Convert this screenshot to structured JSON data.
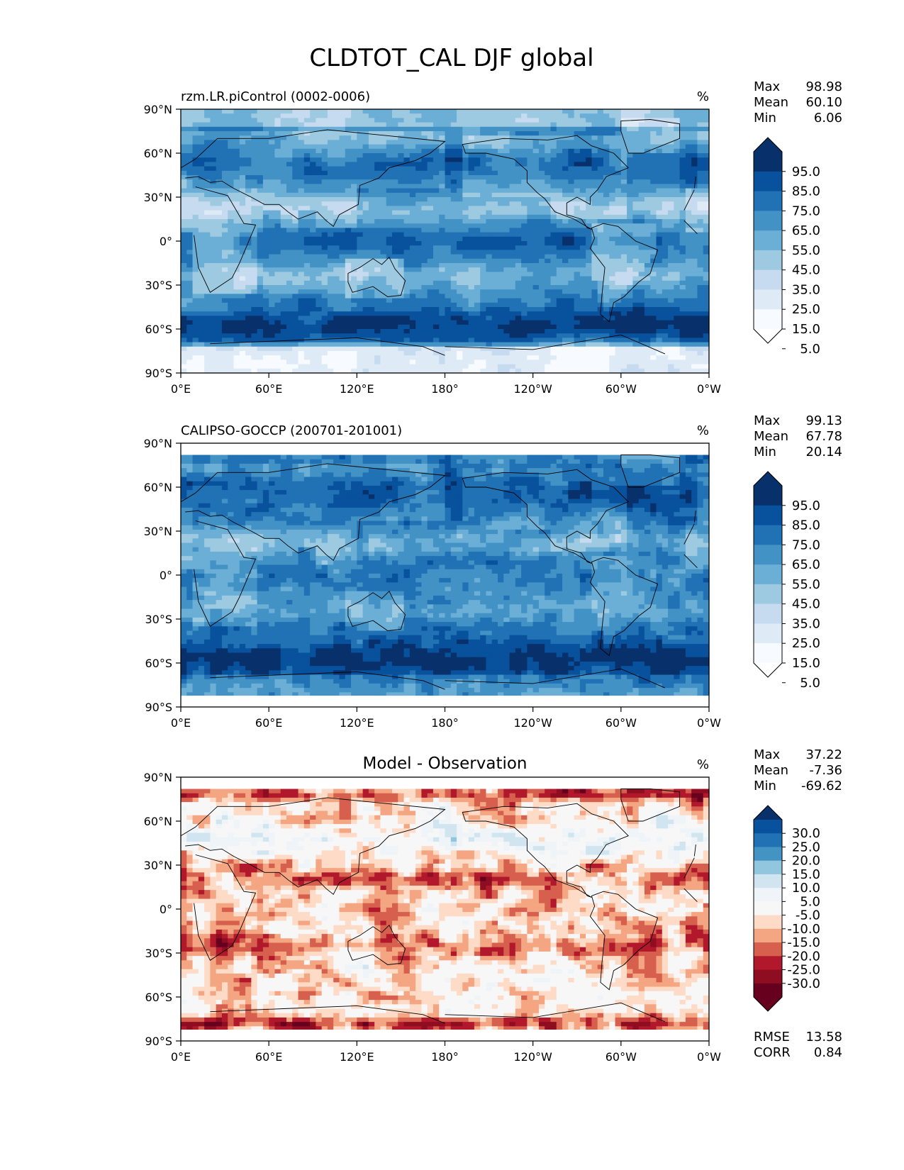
{
  "figure": {
    "title": "CLDTOT_CAL DJF global",
    "lat_ticks": [
      "90°N",
      "60°N",
      "30°N",
      "0°",
      "30°S",
      "60°S",
      "90°S"
    ],
    "lon_ticks": [
      "0°E",
      "60°E",
      "120°E",
      "180°",
      "120°W",
      "60°W",
      "0°W"
    ]
  },
  "chart_data": [
    {
      "type": "heatmap",
      "title": "",
      "left_title": "rzm.LR.piControl (0002-0006)",
      "units": "%",
      "stats": [
        {
          "label": "Max",
          "value": "98.98"
        },
        {
          "label": "Mean",
          "value": "60.10"
        },
        {
          "label": "Min",
          "value": "6.06"
        }
      ],
      "colorbar": {
        "extend": "both",
        "tick_labels": [
          "95.0",
          "85.0",
          "75.0",
          "65.0",
          "55.0",
          "45.0",
          "35.0",
          "25.0",
          "15.0",
          "5.0"
        ],
        "colors": [
          "#08306b",
          "#08519c",
          "#2171b5",
          "#4292c6",
          "#6baed6",
          "#9ecae1",
          "#c6dbef",
          "#deebf7",
          "#f7fbff"
        ]
      },
      "xlim": [
        0,
        360
      ],
      "ylim": [
        -90,
        90
      ],
      "cloud_fraction_range": [
        6.06,
        98.98
      ]
    },
    {
      "type": "heatmap",
      "title": "",
      "left_title": "CALIPSO-GOCCP (200701-201001)",
      "units": "%",
      "stats": [
        {
          "label": "Max",
          "value": "99.13"
        },
        {
          "label": "Mean",
          "value": "67.78"
        },
        {
          "label": "Min",
          "value": "20.14"
        }
      ],
      "colorbar": {
        "extend": "both",
        "tick_labels": [
          "95.0",
          "85.0",
          "75.0",
          "65.0",
          "55.0",
          "45.0",
          "35.0",
          "25.0",
          "15.0",
          "5.0"
        ],
        "colors": [
          "#08306b",
          "#08519c",
          "#2171b5",
          "#4292c6",
          "#6baed6",
          "#9ecae1",
          "#c6dbef",
          "#deebf7",
          "#f7fbff"
        ]
      },
      "xlim": [
        0,
        360
      ],
      "ylim": [
        -90,
        90
      ],
      "data_lat_extent": [
        -82,
        82
      ],
      "cloud_fraction_range": [
        20.14,
        99.13
      ]
    },
    {
      "type": "heatmap",
      "title": "Model - Observation",
      "left_title": "",
      "units": "%",
      "stats": [
        {
          "label": "Max",
          "value": "37.22"
        },
        {
          "label": "Mean",
          "value": "-7.36"
        },
        {
          "label": "Min",
          "value": "-69.62"
        }
      ],
      "colorbar": {
        "extend": "both",
        "tick_labels": [
          "30.0",
          "25.0",
          "20.0",
          "15.0",
          "10.0",
          "5.0",
          "-5.0",
          "-10.0",
          "-15.0",
          "-20.0",
          "-25.0",
          "-30.0"
        ],
        "colors": [
          "#08519c",
          "#2171b5",
          "#4393c3",
          "#92c5de",
          "#d1e5f0",
          "#eef4f8",
          "#f7f7f7",
          "#fddbc7",
          "#f4a582",
          "#d6604d",
          "#b2182b",
          "#8f0d21",
          "#67001f"
        ]
      },
      "xlim": [
        0,
        360
      ],
      "ylim": [
        -90,
        90
      ],
      "data_lat_extent": [
        -82,
        82
      ],
      "diff_range": [
        -69.62,
        37.22
      ],
      "metrics": [
        {
          "label": "RMSE",
          "value": "13.58"
        },
        {
          "label": "CORR",
          "value": "0.84"
        }
      ]
    }
  ]
}
